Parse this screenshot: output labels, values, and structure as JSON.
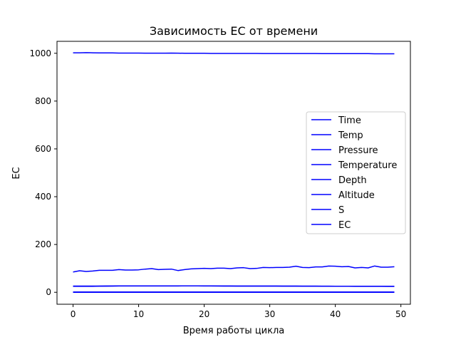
{
  "chart_data": {
    "type": "line",
    "title": "Зависимость EC от времени",
    "xlabel": "Время работы цикла",
    "ylabel": "EC",
    "xlim": [
      -2.45,
      51.45
    ],
    "ylim": [
      -50,
      1050
    ],
    "xticks": [
      0,
      10,
      20,
      30,
      40,
      50
    ],
    "yticks": [
      0,
      200,
      400,
      600,
      800,
      1000
    ],
    "grid": false,
    "legend_position": "center-right",
    "line_color": "#0000ff",
    "x": [
      0,
      1,
      2,
      3,
      4,
      5,
      6,
      7,
      8,
      9,
      10,
      11,
      12,
      13,
      14,
      15,
      16,
      17,
      18,
      19,
      20,
      21,
      22,
      23,
      24,
      25,
      26,
      27,
      28,
      29,
      30,
      31,
      32,
      33,
      34,
      35,
      36,
      37,
      38,
      39,
      40,
      41,
      42,
      43,
      44,
      45,
      46,
      47,
      48,
      49
    ],
    "series": [
      {
        "name": "Time",
        "values": [
          0,
          0,
          0,
          0,
          0,
          0,
          0,
          0,
          0,
          0,
          0,
          0,
          0,
          0,
          0,
          0,
          0,
          0,
          0,
          0,
          0,
          0,
          0,
          0,
          0,
          0,
          0,
          0,
          0,
          0,
          0,
          0,
          0,
          0,
          0,
          0,
          0,
          0,
          0,
          0,
          0,
          0,
          0,
          0,
          0,
          0,
          0,
          0,
          0,
          0
        ]
      },
      {
        "name": "Temp",
        "values": [
          25,
          25,
          25,
          25,
          25.5,
          25.5,
          26,
          26.5,
          26.5,
          26.5,
          26.5,
          26.5,
          26.5,
          26.5,
          26.5,
          26.5,
          26.5,
          26.8,
          26.8,
          26.8,
          26.5,
          26.5,
          26.3,
          26.2,
          26,
          26,
          26,
          26,
          26,
          26,
          26,
          25.9,
          25.8,
          25.8,
          25.7,
          25.6,
          25.6,
          25.5,
          25.4,
          25.3,
          25.2,
          25.2,
          25.1,
          25,
          25,
          25,
          24.9,
          24.9,
          24.9,
          24.8
        ]
      },
      {
        "name": "Pressure",
        "values": [
          1002,
          1002,
          1002.5,
          1002,
          1001.5,
          1001.5,
          1001.5,
          1001,
          1001,
          1001,
          1001,
          1000.5,
          1000.5,
          1000.5,
          1000.5,
          1001,
          1000.5,
          1000,
          1000,
          1000,
          1000,
          999.5,
          999.5,
          999.5,
          999.5,
          999.5,
          999.5,
          999.5,
          999.5,
          999,
          999,
          999,
          999,
          999,
          999,
          999,
          999,
          999,
          998.5,
          998.5,
          998.5,
          998.5,
          998.5,
          998.5,
          998.5,
          998.5,
          998,
          998,
          998,
          998
        ]
      },
      {
        "name": "Temperature",
        "values": [
          26,
          26,
          26,
          26,
          26,
          26.3,
          26.5,
          26.7,
          26.8,
          26.8,
          26.8,
          26.8,
          26.8,
          26.8,
          26.8,
          26.8,
          26.8,
          26.9,
          26.9,
          26.9,
          26.7,
          26.6,
          26.5,
          26.4,
          26.3,
          26.2,
          26.2,
          26.2,
          26.2,
          26.2,
          26.1,
          26.1,
          26,
          26,
          25.9,
          25.8,
          25.8,
          25.7,
          25.6,
          25.5,
          25.4,
          25.3,
          25.3,
          25.2,
          25.2,
          25.2,
          25.1,
          25.1,
          25,
          25
        ]
      },
      {
        "name": "Depth",
        "values": [
          0.1,
          0.1,
          0.1,
          0.1,
          0.1,
          0.1,
          0.1,
          0.1,
          0.1,
          0.1,
          0.1,
          0.1,
          0.1,
          0.1,
          0.1,
          0.1,
          0.1,
          0.1,
          0.1,
          0.1,
          0.1,
          0.1,
          0.1,
          0.1,
          0.1,
          0.1,
          0.1,
          0.1,
          0.1,
          0.1,
          0.1,
          0.1,
          0.1,
          0.1,
          0.1,
          0.1,
          0.1,
          0.1,
          0.1,
          0.1,
          0.1,
          0.1,
          0.1,
          0.1,
          0.1,
          0.1,
          0.1,
          0.1,
          0.1,
          0.1
        ]
      },
      {
        "name": "Altitude",
        "values": [
          1,
          1,
          1,
          1,
          1,
          1,
          1,
          1,
          1,
          1,
          1,
          1,
          1,
          1,
          1,
          1,
          1,
          1,
          1,
          1,
          1,
          1,
          1,
          1,
          1,
          1,
          1,
          1,
          1,
          1,
          1,
          1,
          1,
          1,
          1,
          1,
          1,
          1,
          1,
          1,
          1,
          1,
          1,
          1,
          1,
          1,
          1,
          1,
          1,
          1
        ]
      },
      {
        "name": "S",
        "values": [
          0.5,
          0.5,
          0.5,
          0.5,
          0.5,
          0.5,
          0.5,
          0.5,
          0.5,
          0.5,
          0.5,
          0.5,
          0.5,
          0.5,
          0.5,
          0.5,
          0.5,
          0.5,
          0.5,
          0.5,
          0.5,
          0.5,
          0.5,
          0.5,
          0.5,
          0.5,
          0.5,
          0.5,
          0.5,
          0.5,
          0.5,
          0.5,
          0.5,
          0.5,
          0.5,
          0.5,
          0.5,
          0.5,
          0.5,
          0.5,
          0.5,
          0.5,
          0.5,
          0.5,
          0.5,
          0.5,
          0.5,
          0.5,
          0.5,
          0.5
        ]
      },
      {
        "name": "EC",
        "values": [
          85,
          90,
          87,
          89,
          92,
          92,
          92,
          95,
          93,
          93,
          94,
          97,
          99,
          95,
          96,
          97,
          91,
          95,
          98,
          99,
          100,
          99,
          101,
          101,
          99,
          102,
          103,
          99,
          100,
          104,
          103,
          104,
          104,
          105,
          109,
          104,
          103,
          106,
          106,
          110,
          109,
          107,
          108,
          102,
          104,
          102,
          110,
          105,
          105,
          107
        ]
      }
    ]
  }
}
